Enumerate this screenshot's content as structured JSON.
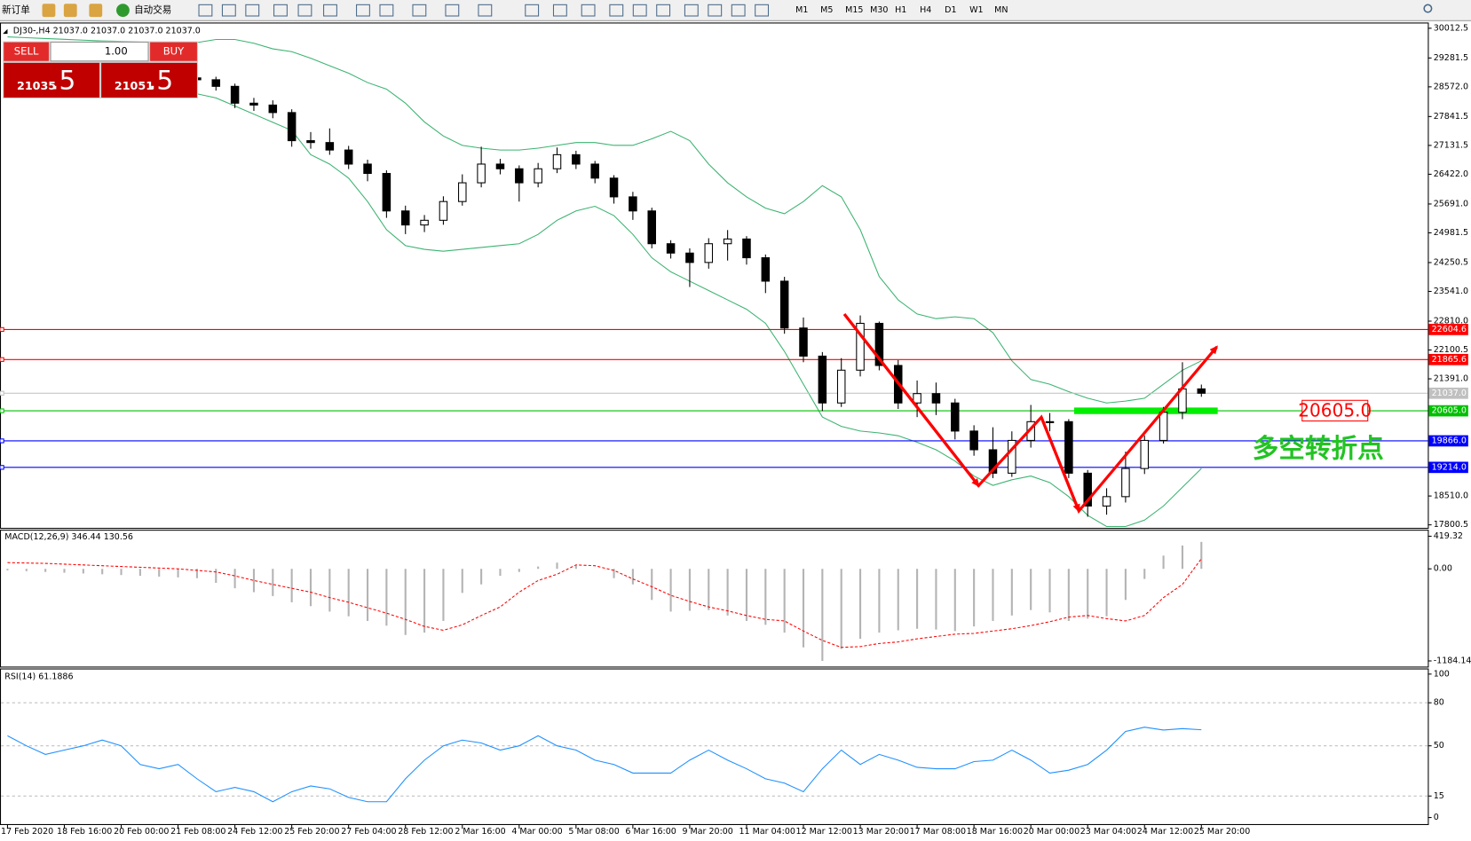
{
  "toolbar": {
    "new_order": "新订单",
    "auto_trade": "自动交易",
    "timeframes": [
      "M1",
      "M5",
      "M15",
      "M30",
      "H1",
      "H4",
      "D1",
      "W1",
      "MN"
    ]
  },
  "trade_panel": {
    "sell": "SELL",
    "buy": "BUY",
    "lots": "1.00",
    "sell_price": "21035",
    "sell_pips": ".5",
    "buy_price": "21051",
    "buy_pips": ".5"
  },
  "chart_data": [
    {
      "type": "candlestick",
      "title": "DJ30-,H4  21037.0 21037.0 21037.0 21037.0",
      "categories": [
        "17 Feb 2020",
        null,
        null,
        "18 Feb 16:00",
        null,
        null,
        "20 Feb 00:00",
        null,
        null,
        "21 Feb 08:00",
        null,
        null,
        "24 Feb 12:00",
        null,
        null,
        "25 Feb 20:00",
        null,
        null,
        "27 Feb 04:00",
        null,
        null,
        "28 Feb 12:00",
        null,
        null,
        "2 Mar 16:00",
        null,
        null,
        "4 Mar 00:00",
        null,
        null,
        "5 Mar 08:00",
        null,
        null,
        "6 Mar 16:00",
        null,
        null,
        "9 Mar 20:00",
        null,
        null,
        "11 Mar 04:00",
        null,
        null,
        "12 Mar 12:00",
        null,
        null,
        "13 Mar 20:00",
        null,
        null,
        "17 Mar 08:00",
        null,
        null,
        "18 Mar 16:00",
        null,
        null,
        "20 Mar 00:00",
        null,
        null,
        "23 Mar 04:00",
        null,
        null,
        "24 Mar 12:00",
        null,
        null,
        "25 Mar 20:00"
      ],
      "open": [
        29250,
        29206,
        29137,
        29091,
        29045,
        28999,
        28953,
        28907,
        28861,
        28815,
        28792,
        28746,
        28584,
        28170,
        28124,
        27939,
        27248,
        27202,
        27018,
        26672,
        26442,
        25520,
        25175,
        25290,
        25751,
        26212,
        26672,
        26557,
        26212,
        26557,
        26903,
        26672,
        26327,
        25866,
        25520,
        24714,
        24484,
        24253,
        24714,
        24830,
        24369,
        23793,
        22641,
        21950,
        20798,
        21604,
        22756,
        21720,
        20798,
        21028,
        20798,
        20107,
        19647,
        19071,
        19877,
        20338,
        20338,
        19071,
        18264,
        18494,
        19186,
        19877,
        20568,
        21144
      ],
      "high": [
        29330,
        29280,
        29220,
        29180,
        29130,
        29090,
        29050,
        29000,
        28960,
        28900,
        28880,
        28820,
        28650,
        28300,
        28240,
        28020,
        27460,
        27550,
        27120,
        26780,
        26520,
        25650,
        25420,
        25880,
        26420,
        27100,
        26800,
        26640,
        26700,
        27080,
        27000,
        26750,
        26400,
        25990,
        25600,
        24800,
        24600,
        24850,
        25050,
        24900,
        24450,
        23900,
        22900,
        22050,
        21900,
        22950,
        22800,
        21850,
        21350,
        21300,
        20900,
        20250,
        20200,
        20100,
        20750,
        20550,
        20400,
        19150,
        18700,
        19600,
        20000,
        20700,
        21800,
        21250
      ],
      "low": [
        29120,
        29060,
        29010,
        28960,
        28900,
        28860,
        28820,
        28780,
        28730,
        28700,
        28650,
        28480,
        28050,
        27980,
        27800,
        27100,
        27050,
        26900,
        26550,
        26250,
        25350,
        24950,
        25000,
        25180,
        25650,
        26100,
        26420,
        25750,
        26100,
        26450,
        26550,
        26200,
        25700,
        25300,
        24600,
        24350,
        23650,
        24100,
        24300,
        24200,
        23500,
        22500,
        21800,
        20600,
        20700,
        21450,
        21600,
        20650,
        20450,
        20500,
        19900,
        19500,
        18950,
        18980,
        19700,
        20100,
        18950,
        18000,
        18050,
        18350,
        19050,
        19800,
        20400,
        20950
      ],
      "close": [
        29206,
        29137,
        29091,
        29045,
        28999,
        28953,
        28907,
        28861,
        28815,
        28792,
        28746,
        28584,
        28170,
        28124,
        27939,
        27248,
        27202,
        27018,
        26672,
        26442,
        25520,
        25175,
        25290,
        25751,
        26212,
        26672,
        26557,
        26212,
        26557,
        26903,
        26672,
        26327,
        25866,
        25520,
        24714,
        24484,
        24253,
        24714,
        24830,
        24369,
        23793,
        22641,
        21950,
        20798,
        21604,
        22756,
        21720,
        20798,
        21028,
        20798,
        20107,
        19647,
        19071,
        19877,
        20338,
        20338,
        19071,
        18264,
        18494,
        19186,
        19877,
        20568,
        21144,
        21037
      ],
      "upper_band": [
        29800,
        29780,
        29760,
        29740,
        29720,
        29700,
        29690,
        29680,
        29670,
        29660,
        29660,
        29736,
        29736,
        29644,
        29506,
        29437,
        29275,
        29091,
        28907,
        28677,
        28516,
        28170,
        27709,
        27363,
        27133,
        27064,
        27018,
        27018,
        27064,
        27133,
        27202,
        27202,
        27133,
        27133,
        27294,
        27478,
        27248,
        26672,
        26212,
        25866,
        25589,
        25451,
        25751,
        26142,
        25866,
        25059,
        23908,
        23332,
        22986,
        22871,
        22917,
        22871,
        22526,
        21835,
        21374,
        21259,
        21075,
        20914,
        20798,
        20844,
        20914,
        21259,
        21604,
        21835
      ],
      "lower_band": [
        28900,
        28850,
        28800,
        28750,
        28700,
        28650,
        28600,
        28550,
        28500,
        28450,
        28400,
        28300,
        28100,
        27900,
        27700,
        27500,
        26903,
        26672,
        26327,
        25751,
        25059,
        24668,
        24576,
        24530,
        24576,
        24622,
        24668,
        24714,
        24944,
        25290,
        25520,
        25635,
        25405,
        24944,
        24369,
        24023,
        23793,
        23562,
        23332,
        23102,
        22756,
        22065,
        21259,
        20453,
        20223,
        20107,
        20061,
        19992,
        19831,
        19647,
        19370,
        19001,
        18771,
        18909,
        19001,
        18840,
        18494,
        18034,
        17760,
        17760,
        17918,
        18264,
        18725,
        19186
      ],
      "band_color": "#3cb371",
      "ylim": [
        17750,
        30130
      ],
      "yticks": [
        30012.5,
        29281.5,
        {
          "value": 28572.0,
          "label": "28572.0"
        },
        27841.5,
        27131.5,
        {
          "value": 26422.0,
          "label": "26422.0"
        },
        {
          "value": 25691.0,
          "label": "25691.0"
        },
        24981.5,
        24250.5,
        {
          "value": 23541.0,
          "label": "23541.0"
        },
        {
          "value": 22810.0,
          "label": "22810.0"
        },
        22100.5,
        {
          "value": 21391.0,
          "label": "21391.0"
        },
        {
          "value": 18510.0,
          "label": "18510.0"
        },
        17800.5
      ],
      "levels": [
        {
          "value": 22604.6,
          "color": "#ff0000"
        },
        {
          "value": 21865.6,
          "color": "#ff0000"
        },
        {
          "value": {
            "value": 21037.0,
            "label": "21037.0"
          },
          "color": "#c0c0c0"
        },
        {
          "value": {
            "value": 20605.0,
            "label": "20605.0"
          },
          "color": "#00c000"
        },
        {
          "value": {
            "value": 19866.0,
            "label": "19866.0"
          },
          "color": "#0000ff"
        },
        {
          "value": {
            "value": 19214.0,
            "label": "19214.0"
          },
          "color": "#0000ff"
        }
      ],
      "annotation": "多空转折点"
    },
    {
      "type": "macd",
      "title": "MACD(12,26,9) 346.44 130.56",
      "histogram": [
        -20,
        -30,
        -40,
        -50,
        -60,
        -70,
        -80,
        -90,
        -100,
        -110,
        -120,
        -180,
        -250,
        -300,
        -350,
        -430,
        -480,
        -550,
        -610,
        -670,
        -730,
        -850,
        -820,
        -670,
        -310,
        -200,
        -90,
        -40,
        30,
        80,
        40,
        0,
        -120,
        -200,
        -400,
        -550,
        -540,
        -530,
        -600,
        -670,
        -720,
        -820,
        -1010,
        -1184,
        -1030,
        -900,
        -820,
        -790,
        -770,
        -780,
        -800,
        -740,
        -670,
        -600,
        -530,
        -560,
        -670,
        -640,
        -610,
        -400,
        -130,
        170,
        300,
        346.44
      ],
      "signal": [
        80,
        75,
        70,
        60,
        50,
        40,
        30,
        20,
        10,
        0,
        -20,
        -40,
        -90,
        -150,
        -200,
        -250,
        -300,
        -370,
        -430,
        -500,
        -570,
        -650,
        -740,
        -790,
        -720,
        -600,
        -490,
        -300,
        -150,
        -70,
        50,
        40,
        -20,
        -130,
        -230,
        -340,
        -420,
        -490,
        -540,
        -600,
        -650,
        -670,
        -800,
        -920,
        -1010,
        -1000,
        -960,
        -940,
        -900,
        -870,
        -840,
        -830,
        -800,
        -770,
        -730,
        -680,
        -620,
        -600,
        -640,
        -670,
        -600,
        -370,
        -200,
        130.56
      ],
      "histogram_color": "#b4b4b4",
      "signal_color": "#ff0000",
      "ylim": [
        -1257,
        491
      ],
      "yticks": [
        419.32,
        {
          "value": 0,
          "label": "0.00"
        },
        -1184.14
      ]
    },
    {
      "type": "line",
      "title": "RSI(14) 61.1886",
      "values": [
        57,
        50,
        44,
        47,
        50,
        54,
        50,
        37,
        34,
        37,
        27,
        18,
        21,
        18,
        11,
        18,
        22,
        20,
        14,
        11,
        11,
        27,
        40,
        50,
        54,
        52,
        47,
        50,
        57,
        50,
        47,
        40,
        37,
        31,
        31,
        31,
        40,
        47,
        40,
        34,
        27,
        24,
        18,
        34,
        47,
        37,
        44,
        40,
        35,
        34,
        34,
        39,
        40,
        47,
        40,
        31,
        33,
        37,
        47,
        60,
        63,
        61,
        62,
        61.1886
      ],
      "color": "#1e90ff",
      "ylim": [
        0,
        100
      ],
      "yticks": [
        100,
        80,
        50,
        15,
        0
      ]
    }
  ]
}
